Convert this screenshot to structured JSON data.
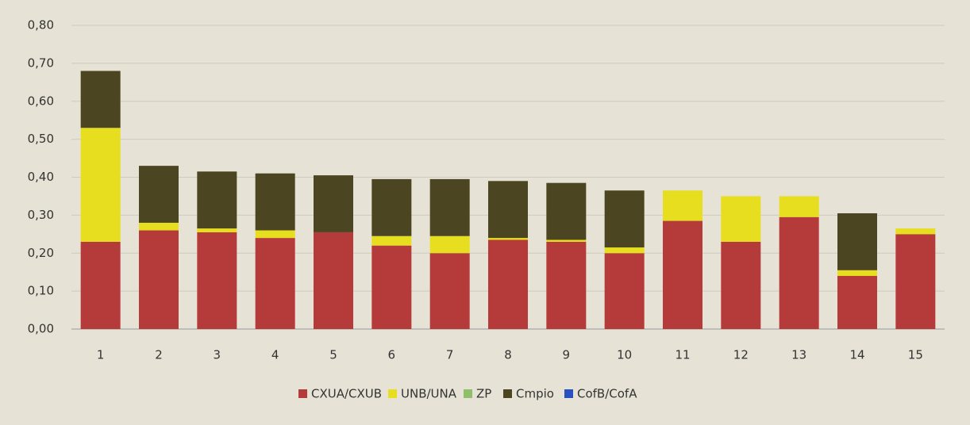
{
  "chart_data": {
    "type": "stacked_bar",
    "categories": [
      "1",
      "2",
      "3",
      "4",
      "5",
      "6",
      "7",
      "8",
      "9",
      "10",
      "11",
      "12",
      "13",
      "14",
      "15"
    ],
    "series": [
      {
        "name": "CXUA/CXUB",
        "color": "#b53a3a",
        "values": [
          0.23,
          0.26,
          0.255,
          0.24,
          0.255,
          0.22,
          0.2,
          0.235,
          0.23,
          0.2,
          0.285,
          0.23,
          0.295,
          0.14,
          0.25
        ]
      },
      {
        "name": "UNB/UNA",
        "color": "#e6de1e",
        "values": [
          0.3,
          0.02,
          0.01,
          0.02,
          0,
          0.025,
          0.045,
          0.005,
          0.005,
          0.015,
          0.08,
          0.12,
          0.055,
          0.015,
          0.015
        ]
      },
      {
        "name": "ZP",
        "color": "#8fbf6a",
        "values": [
          0,
          0,
          0,
          0,
          0,
          0,
          0,
          0,
          0,
          0,
          0,
          0,
          0,
          0,
          0
        ]
      },
      {
        "name": "Cmpio",
        "color": "#4b4521",
        "values": [
          0.15,
          0.15,
          0.15,
          0.15,
          0.15,
          0.15,
          0.15,
          0.15,
          0.15,
          0.15,
          0,
          0,
          0,
          0.15,
          0
        ]
      },
      {
        "name": "CofB/CofA",
        "color": "#2a4fc0",
        "values": [
          0,
          0,
          0,
          0,
          0,
          0,
          0,
          0,
          0,
          0,
          0,
          0,
          0,
          0,
          0
        ]
      }
    ],
    "ylim": [
      0,
      0.8
    ],
    "yticks": [
      {
        "value": 0,
        "label": "0,00"
      },
      {
        "value": 0.1,
        "label": "0,10"
      },
      {
        "value": 0.2,
        "label": "0,20"
      },
      {
        "value": 0.3,
        "label": "0,30"
      },
      {
        "value": 0.4,
        "label": "0,40"
      },
      {
        "value": 0.5,
        "label": "0,50"
      },
      {
        "value": 0.6,
        "label": "0,60"
      },
      {
        "value": 0.7,
        "label": "0,70"
      },
      {
        "value": 0.8,
        "label": "0,80"
      }
    ],
    "grid": true,
    "legend": "bottom"
  }
}
